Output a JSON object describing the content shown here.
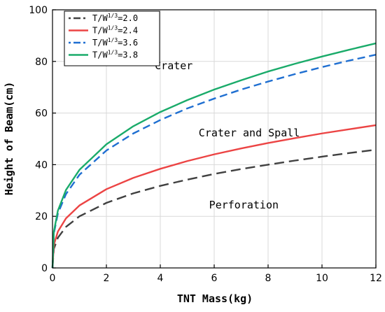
{
  "chart_data": {
    "type": "line",
    "xlabel": "TNT Mass(kg)",
    "ylabel": "Height of Beam(cm)",
    "xlim": [
      0,
      12
    ],
    "ylim": [
      0,
      100
    ],
    "xticks": [
      0,
      2,
      4,
      6,
      8,
      10,
      12
    ],
    "yticks": [
      0,
      20,
      40,
      60,
      80,
      100
    ],
    "grid": true,
    "legend_position": "top-left",
    "series": [
      {
        "name": "T/W1/3=2.0",
        "legend_prefix": "T/W",
        "legend_sup": "1/3",
        "legend_suffix": "=2.0",
        "color": "#404040",
        "dash": "long-dash",
        "x": [
          0,
          0.05,
          0.2,
          0.5,
          1,
          2,
          3,
          4,
          5,
          6,
          7,
          8,
          9,
          10,
          11,
          12
        ],
        "y": [
          0,
          7.4,
          11.7,
          15.9,
          20.0,
          25.2,
          28.9,
          31.8,
          34.2,
          36.4,
          38.3,
          40.0,
          41.6,
          43.1,
          44.5,
          45.8
        ]
      },
      {
        "name": "T/W1/3=2.4",
        "legend_prefix": "T/W",
        "legend_sup": "1/3",
        "legend_suffix": "=2.4",
        "color": "#ec4444",
        "dash": "solid",
        "x": [
          0,
          0.05,
          0.2,
          0.5,
          1,
          2,
          3,
          4,
          5,
          6,
          7,
          8,
          9,
          10,
          11,
          12
        ],
        "y": [
          0,
          8.9,
          14.1,
          19.2,
          24.2,
          30.5,
          34.9,
          38.4,
          41.4,
          44.0,
          46.3,
          48.4,
          50.3,
          52.1,
          53.7,
          55.3
        ]
      },
      {
        "name": "T/W1/3=3.6",
        "legend_prefix": "T/W",
        "legend_sup": "1/3",
        "legend_suffix": "=3.6",
        "color": "#1f6fd1",
        "dash": "dash",
        "x": [
          0,
          0.05,
          0.2,
          0.5,
          1,
          2,
          3,
          4,
          5,
          6,
          7,
          8,
          9,
          10,
          11,
          12
        ],
        "y": [
          0,
          13.3,
          21.1,
          28.6,
          36.1,
          45.5,
          52.1,
          57.3,
          61.8,
          65.6,
          69.1,
          72.2,
          75.1,
          77.8,
          80.3,
          82.6
        ]
      },
      {
        "name": "T/W1/3=3.8",
        "legend_prefix": "T/W",
        "legend_sup": "1/3",
        "legend_suffix": "=3.8",
        "color": "#1aab6a",
        "dash": "solid",
        "x": [
          0,
          0.05,
          0.2,
          0.5,
          1,
          2,
          3,
          4,
          5,
          6,
          7,
          8,
          9,
          10,
          11,
          12
        ],
        "y": [
          0,
          14.0,
          22.2,
          30.2,
          38.0,
          47.9,
          54.9,
          60.4,
          65.0,
          69.1,
          72.7,
          76.1,
          79.1,
          81.9,
          84.5,
          87.0
        ]
      }
    ],
    "annotations": [
      {
        "text": "Crater",
        "x": 4.5,
        "y": 77
      },
      {
        "text": "Crater and Spall",
        "x": 7.3,
        "y": 51
      },
      {
        "text": "Perforation",
        "x": 7.1,
        "y": 23
      }
    ]
  }
}
